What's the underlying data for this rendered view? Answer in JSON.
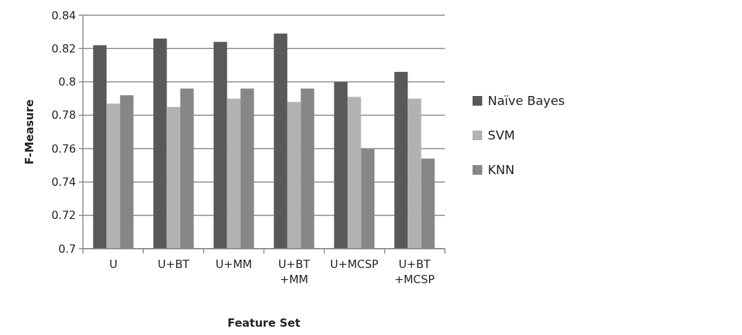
{
  "chart_data": {
    "type": "bar",
    "xlabel": "Feature Set",
    "ylabel": "F-Measure",
    "categories": [
      "U",
      "U+BT",
      "U+MM",
      "U+BT\n+MM",
      "U+MCSP",
      "U+BT\n+MCSP"
    ],
    "series": [
      {
        "name": "Naïve Bayes",
        "color": "#595959",
        "values": [
          0.822,
          0.826,
          0.824,
          0.829,
          0.8,
          0.806
        ]
      },
      {
        "name": "SVM",
        "color": "#b2b2b2",
        "values": [
          0.787,
          0.785,
          0.79,
          0.788,
          0.791,
          0.79
        ]
      },
      {
        "name": "KNN",
        "color": "#878787",
        "values": [
          0.792,
          0.796,
          0.796,
          0.796,
          0.76,
          0.754
        ]
      }
    ],
    "ylim": [
      0.7,
      0.84
    ],
    "yticks": [
      0.7,
      0.72,
      0.74,
      0.76,
      0.78,
      0.8,
      0.82,
      0.84
    ],
    "grid": "y",
    "legend": "right"
  }
}
